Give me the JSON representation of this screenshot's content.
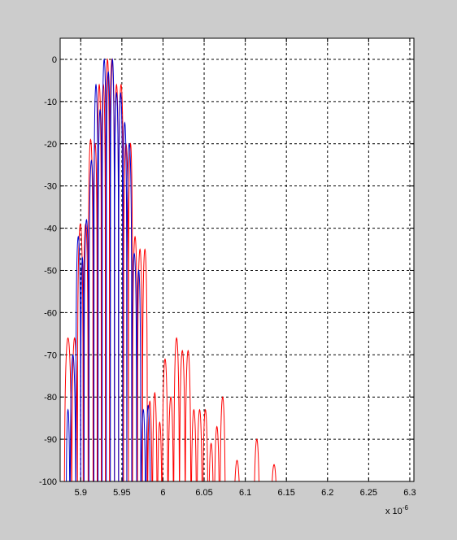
{
  "figure": {
    "background_color": "#cccccc",
    "axes_color": "#ffffff"
  },
  "chart_data": {
    "type": "line",
    "title": "",
    "xlabel": "",
    "ylabel": "",
    "x_exponent_label": "x 10",
    "x_exponent_power": "-6",
    "xlim": [
      5.875,
      6.305
    ],
    "ylim": [
      -100,
      5
    ],
    "x_ticks": [
      5.9,
      5.95,
      6.0,
      6.05,
      6.1,
      6.15,
      6.2,
      6.25,
      6.3
    ],
    "x_tick_labels": [
      "5.9",
      "5.95",
      "6",
      "6.05",
      "6.1",
      "6.15",
      "6.2",
      "6.25",
      "6.3"
    ],
    "y_ticks": [
      0,
      -10,
      -20,
      -30,
      -40,
      -50,
      -60,
      -70,
      -80,
      -90,
      -100
    ],
    "y_tick_labels": [
      "0",
      "-10",
      "-20",
      "-30",
      "-40",
      "-50",
      "-60",
      "-70",
      "-80",
      "-90",
      "-100"
    ],
    "grid": true,
    "legend": "none",
    "series": [
      {
        "color": "#ff0000",
        "lobes": [
          {
            "x0": 5.88,
            "x1": 5.889,
            "peak": -66
          },
          {
            "x0": 5.889,
            "x1": 5.896,
            "peak": -66
          },
          {
            "x0": 5.896,
            "x1": 5.903,
            "peak": -39
          },
          {
            "x0": 5.903,
            "x1": 5.909,
            "peak": -39
          },
          {
            "x0": 5.909,
            "x1": 5.915,
            "peak": -19
          },
          {
            "x0": 5.915,
            "x1": 5.92,
            "peak": -20
          },
          {
            "x0": 5.92,
            "x1": 5.925,
            "peak": -6
          },
          {
            "x0": 5.925,
            "x1": 5.93,
            "peak": -6
          },
          {
            "x0": 5.93,
            "x1": 5.935,
            "peak": 0
          },
          {
            "x0": 5.935,
            "x1": 5.941,
            "peak": 0
          },
          {
            "x0": 5.941,
            "x1": 5.946,
            "peak": -6
          },
          {
            "x0": 5.946,
            "x1": 5.952,
            "peak": -6
          },
          {
            "x0": 5.952,
            "x1": 5.958,
            "peak": -20
          },
          {
            "x0": 5.958,
            "x1": 5.963,
            "peak": -20
          },
          {
            "x0": 5.963,
            "x1": 5.969,
            "peak": -42
          },
          {
            "x0": 5.969,
            "x1": 5.975,
            "peak": -45
          },
          {
            "x0": 5.975,
            "x1": 5.981,
            "peak": -45
          },
          {
            "x0": 5.981,
            "x1": 5.987,
            "peak": -81
          },
          {
            "x0": 5.987,
            "x1": 5.993,
            "peak": -79
          },
          {
            "x0": 5.993,
            "x1": 5.999,
            "peak": -86
          },
          {
            "x0": 5.999,
            "x1": 6.006,
            "peak": -71
          },
          {
            "x0": 6.006,
            "x1": 6.013,
            "peak": -80
          },
          {
            "x0": 6.013,
            "x1": 6.02,
            "peak": -66
          },
          {
            "x0": 6.02,
            "x1": 6.027,
            "peak": -69
          },
          {
            "x0": 6.027,
            "x1": 6.034,
            "peak": -69
          },
          {
            "x0": 6.034,
            "x1": 6.041,
            "peak": -83
          },
          {
            "x0": 6.041,
            "x1": 6.048,
            "peak": -83
          },
          {
            "x0": 6.048,
            "x1": 6.055,
            "peak": -83
          },
          {
            "x0": 6.055,
            "x1": 6.062,
            "peak": -91
          },
          {
            "x0": 6.062,
            "x1": 6.069,
            "peak": -87
          },
          {
            "x0": 6.069,
            "x1": 6.076,
            "peak": -80
          },
          {
            "x0": 6.085,
            "x1": 6.095,
            "peak": -95
          },
          {
            "x0": 6.11,
            "x1": 6.118,
            "peak": -90
          },
          {
            "x0": 6.13,
            "x1": 6.14,
            "peak": -96
          }
        ]
      },
      {
        "color": "#0000cc",
        "lobes": [
          {
            "x0": 5.882,
            "x1": 5.887,
            "peak": -83
          },
          {
            "x0": 5.887,
            "x1": 5.894,
            "peak": -70
          },
          {
            "x0": 5.894,
            "x1": 5.9,
            "peak": -42
          },
          {
            "x0": 5.9,
            "x1": 5.904,
            "peak": -47
          },
          {
            "x0": 5.904,
            "x1": 5.91,
            "peak": -38
          },
          {
            "x0": 5.91,
            "x1": 5.916,
            "peak": -24
          },
          {
            "x0": 5.916,
            "x1": 5.921,
            "peak": -6
          },
          {
            "x0": 5.921,
            "x1": 5.926,
            "peak": -12
          },
          {
            "x0": 5.926,
            "x1": 5.931,
            "peak": 0
          },
          {
            "x0": 5.931,
            "x1": 5.936,
            "peak": -3
          },
          {
            "x0": 5.936,
            "x1": 5.941,
            "peak": 0
          },
          {
            "x0": 5.941,
            "x1": 5.946,
            "peak": -8
          },
          {
            "x0": 5.946,
            "x1": 5.951,
            "peak": -8
          },
          {
            "x0": 5.951,
            "x1": 5.956,
            "peak": -15
          },
          {
            "x0": 5.956,
            "x1": 5.962,
            "peak": -20
          },
          {
            "x0": 5.962,
            "x1": 5.968,
            "peak": -46
          },
          {
            "x0": 5.968,
            "x1": 5.973,
            "peak": -50
          },
          {
            "x0": 5.973,
            "x1": 5.979,
            "peak": -83
          },
          {
            "x0": 5.979,
            "x1": 5.985,
            "peak": -82
          }
        ]
      }
    ]
  }
}
